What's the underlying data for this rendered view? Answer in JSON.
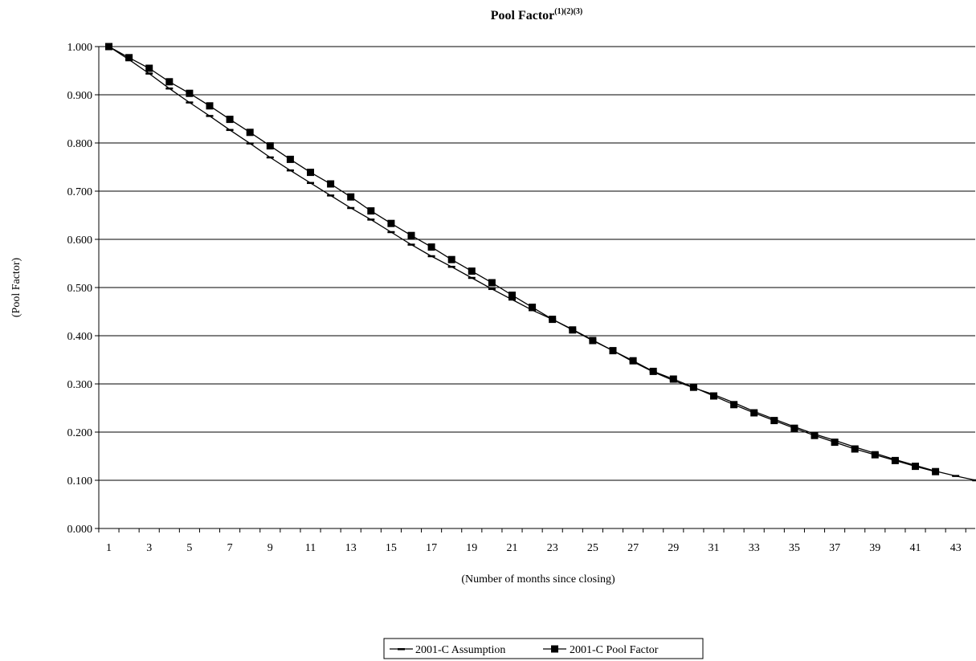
{
  "chart_data": {
    "type": "line",
    "title": "Pool Factor",
    "title_superscript": "(1)(2)(3)",
    "xlabel": "(Number of months since closing)",
    "ylabel": "(Pool Factor)",
    "x_categories": [
      1,
      2,
      3,
      4,
      5,
      6,
      7,
      8,
      9,
      10,
      11,
      12,
      13,
      14,
      15,
      16,
      17,
      18,
      19,
      20,
      21,
      22,
      23,
      24,
      25,
      26,
      27,
      28,
      29,
      30,
      31,
      32,
      33,
      34,
      35,
      36,
      37,
      38,
      39,
      40,
      41,
      42,
      43,
      44
    ],
    "x_tick_labels": [
      "1",
      "3",
      "5",
      "7",
      "9",
      "11",
      "13",
      "15",
      "17",
      "19",
      "21",
      "23",
      "25",
      "27",
      "29",
      "31",
      "33",
      "35",
      "37",
      "39",
      "41",
      "43"
    ],
    "y_tick_labels": [
      "0.000",
      "0.100",
      "0.200",
      "0.300",
      "0.400",
      "0.500",
      "0.600",
      "0.700",
      "0.800",
      "0.900",
      "1.000"
    ],
    "ylim": [
      0,
      1
    ],
    "y_ticks": [
      0,
      0.1,
      0.2,
      0.3,
      0.4,
      0.5,
      0.6,
      0.7,
      0.8,
      0.9,
      1.0
    ],
    "grid": "horizontal",
    "legend_position": "bottom-center",
    "series": [
      {
        "name": "2001-C Assumption",
        "marker": "dash",
        "color": "#000000",
        "x": [
          1,
          2,
          3,
          4,
          5,
          6,
          7,
          8,
          9,
          10,
          11,
          12,
          13,
          14,
          15,
          16,
          17,
          18,
          19,
          20,
          21,
          22,
          23,
          24,
          25,
          26,
          27,
          28,
          29,
          30,
          31,
          32,
          33,
          34,
          35,
          36,
          37,
          38,
          39,
          40,
          41,
          42,
          43,
          44
        ],
        "values": [
          1.0,
          0.973,
          0.944,
          0.913,
          0.884,
          0.856,
          0.827,
          0.799,
          0.77,
          0.743,
          0.717,
          0.691,
          0.665,
          0.641,
          0.615,
          0.589,
          0.565,
          0.543,
          0.52,
          0.497,
          0.475,
          0.453,
          0.434,
          0.413,
          0.391,
          0.369,
          0.346,
          0.325,
          0.307,
          0.292,
          0.278,
          0.261,
          0.243,
          0.227,
          0.211,
          0.196,
          0.183,
          0.169,
          0.156,
          0.143,
          0.131,
          0.119,
          0.109,
          0.1
        ]
      },
      {
        "name": "2001-C Pool Factor",
        "marker": "square",
        "color": "#000000",
        "x": [
          1,
          2,
          3,
          4,
          5,
          6,
          7,
          8,
          9,
          10,
          11,
          12,
          13,
          14,
          15,
          16,
          17,
          18,
          19,
          20,
          21,
          22,
          23,
          24,
          25,
          26,
          27,
          28,
          29,
          30,
          31,
          32,
          33,
          34,
          35,
          36,
          37,
          38,
          39,
          40,
          41,
          42
        ],
        "values": [
          1.0,
          0.977,
          0.955,
          0.927,
          0.903,
          0.877,
          0.849,
          0.822,
          0.794,
          0.766,
          0.739,
          0.715,
          0.688,
          0.659,
          0.633,
          0.608,
          0.584,
          0.558,
          0.534,
          0.51,
          0.484,
          0.459,
          0.434,
          0.412,
          0.39,
          0.369,
          0.348,
          0.326,
          0.31,
          0.293,
          0.275,
          0.257,
          0.24,
          0.224,
          0.208,
          0.193,
          0.179,
          0.165,
          0.153,
          0.141,
          0.129,
          0.118
        ]
      }
    ]
  }
}
